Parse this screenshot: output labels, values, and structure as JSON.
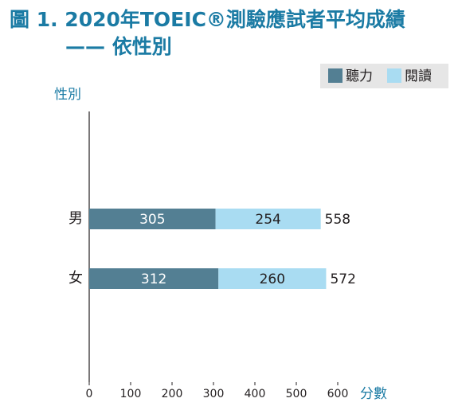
{
  "chart_data": {
    "type": "stacked-barh",
    "title": "圖 1. 2020年TOEIC®測驗應試者平均成績",
    "subtitle": "—— 依性別",
    "y_label": "性別",
    "x_label": "分數",
    "categories": [
      "男",
      "女"
    ],
    "series": [
      {
        "name": "聽力",
        "color": "#537f93",
        "values": [
          305,
          312
        ]
      },
      {
        "name": "閱讀",
        "color": "#a9dcf2",
        "values": [
          254,
          260
        ]
      }
    ],
    "totals": [
      558,
      572
    ],
    "xlim": [
      0,
      600
    ],
    "xticks": [
      0,
      100,
      200,
      300,
      400,
      500,
      600
    ]
  }
}
